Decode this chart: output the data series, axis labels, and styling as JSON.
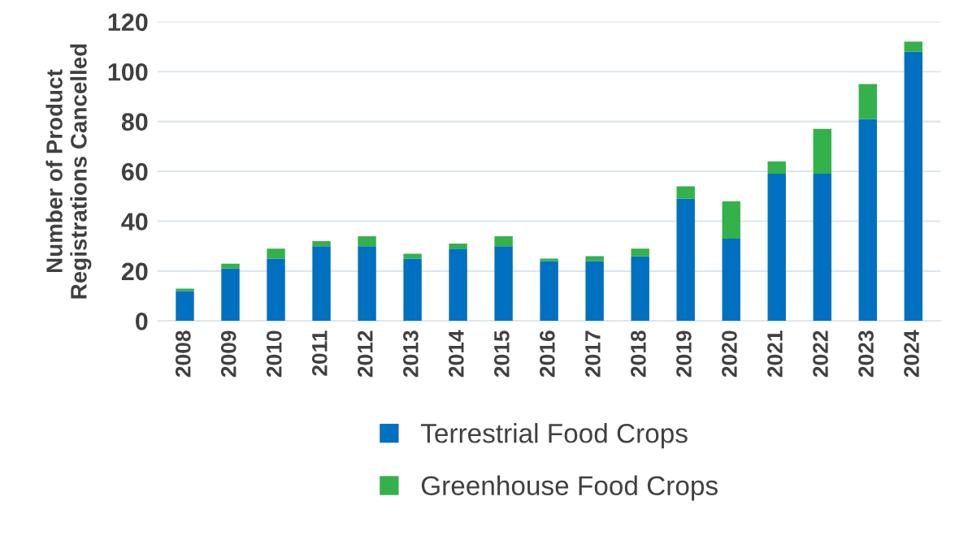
{
  "chart_data": {
    "type": "bar",
    "stacked": true,
    "ylabel": "Number of Product\nRegistrations Cancelled",
    "categories": [
      "2008",
      "2009",
      "2010",
      "2011",
      "2012",
      "2013",
      "2014",
      "2015",
      "2016",
      "2017",
      "2018",
      "2019",
      "2020",
      "2021",
      "2022",
      "2023",
      "2024"
    ],
    "series": [
      {
        "name": "Terrestrial Food Crops",
        "color": "#0070c0",
        "values": [
          12,
          21,
          25,
          30,
          30,
          25,
          29,
          30,
          24,
          24,
          26,
          49,
          33,
          59,
          59,
          81,
          108
        ]
      },
      {
        "name": "Greenhouse Food Crops",
        "color": "#33b14a",
        "values": [
          1,
          2,
          4,
          2,
          4,
          2,
          2,
          4,
          1,
          2,
          3,
          5,
          15,
          5,
          18,
          14,
          4
        ]
      }
    ],
    "ylim": [
      0,
      120
    ],
    "yticks": [
      0,
      20,
      40,
      60,
      80,
      100,
      120
    ],
    "grid": "y",
    "legend": "bottom"
  }
}
